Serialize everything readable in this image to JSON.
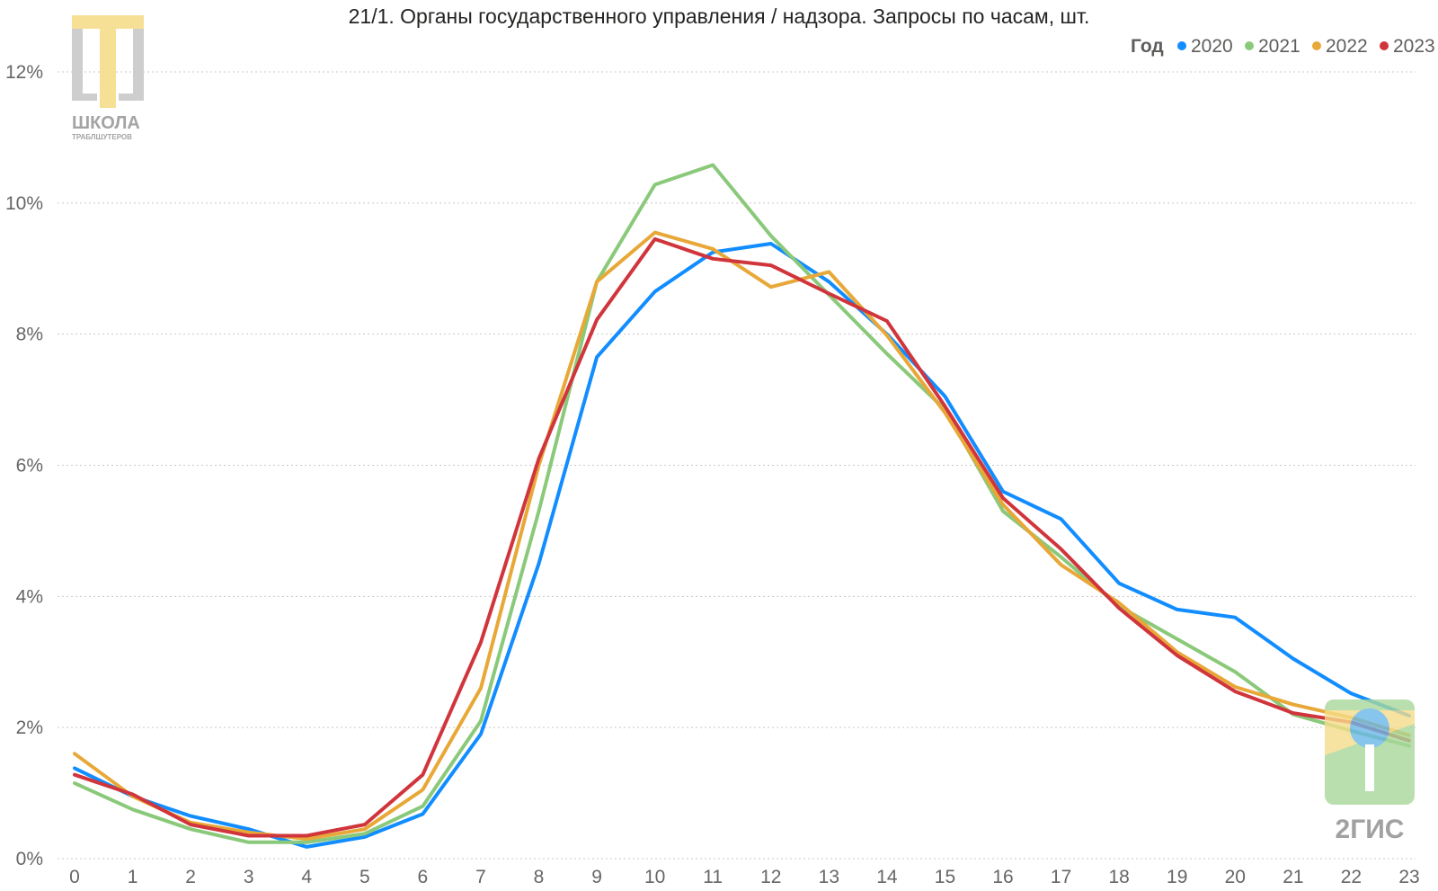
{
  "chart_data": {
    "type": "line",
    "title": "21/1. Органы государственного управления / надзора. Запросы по часам, шт.",
    "x": [
      0,
      1,
      2,
      3,
      4,
      5,
      6,
      7,
      8,
      9,
      10,
      11,
      12,
      13,
      14,
      15,
      16,
      17,
      18,
      19,
      20,
      21,
      22,
      23
    ],
    "x_tick_labels": [
      "0",
      "1",
      "2",
      "3",
      "4",
      "5",
      "6",
      "7",
      "8",
      "9",
      "10",
      "11",
      "12",
      "13",
      "14",
      "15",
      "16",
      "17",
      "18",
      "19",
      "20",
      "21",
      "22",
      "23"
    ],
    "y_tick_labels": [
      "0%",
      "2%",
      "4%",
      "6%",
      "8%",
      "10%",
      "12%"
    ],
    "ylim": [
      0,
      12
    ],
    "grid": true,
    "legend_title": "Год",
    "legend_position": "top-right",
    "series": [
      {
        "name": "2020",
        "color": "#118DFF",
        "values": [
          1.38,
          0.95,
          0.65,
          0.45,
          0.18,
          0.33,
          0.68,
          1.9,
          4.5,
          7.65,
          8.65,
          9.25,
          9.38,
          8.8,
          8.0,
          7.05,
          5.6,
          5.18,
          4.2,
          3.8,
          3.68,
          3.05,
          2.52,
          2.18
        ]
      },
      {
        "name": "2021",
        "color": "#8AC97A",
        "values": [
          1.15,
          0.75,
          0.45,
          0.25,
          0.25,
          0.38,
          0.8,
          2.1,
          5.3,
          8.8,
          10.28,
          10.58,
          9.5,
          8.6,
          7.7,
          6.85,
          5.3,
          4.6,
          3.85,
          3.35,
          2.85,
          2.2,
          1.95,
          1.72
        ]
      },
      {
        "name": "2022",
        "color": "#E8A838",
        "values": [
          1.6,
          0.95,
          0.55,
          0.4,
          0.3,
          0.45,
          1.05,
          2.6,
          6.0,
          8.8,
          9.55,
          9.3,
          8.72,
          8.95,
          7.98,
          6.8,
          5.4,
          4.48,
          3.9,
          3.15,
          2.62,
          2.35,
          2.15,
          1.88
        ]
      },
      {
        "name": "2023",
        "color": "#D1353C",
        "values": [
          1.28,
          0.98,
          0.52,
          0.35,
          0.35,
          0.52,
          1.28,
          3.3,
          6.1,
          8.22,
          9.45,
          9.15,
          9.05,
          8.62,
          8.2,
          6.9,
          5.5,
          4.72,
          3.82,
          3.1,
          2.55,
          2.22,
          2.08,
          1.8
        ]
      }
    ]
  },
  "logos": {
    "school_text": "ШКОЛА",
    "school_subtext": "ТРАБЛШУТЕРОВ",
    "gis_text": "2ГИС"
  }
}
